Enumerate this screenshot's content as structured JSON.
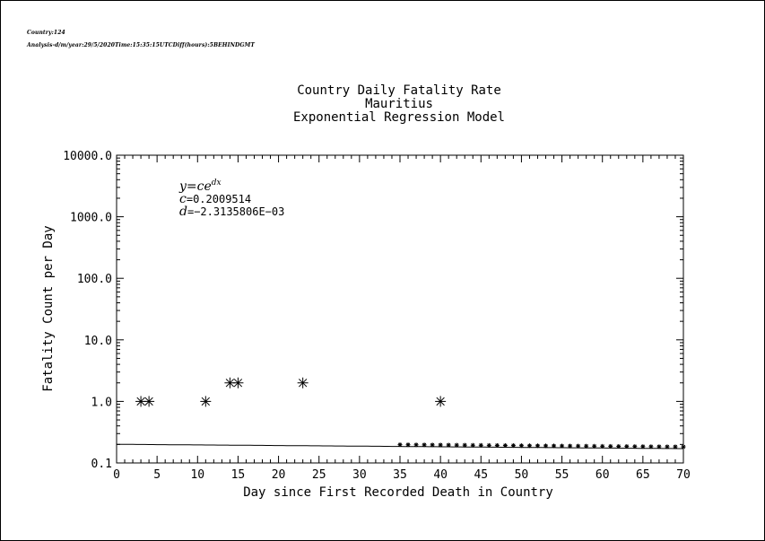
{
  "header": {
    "line1": "Country:124",
    "line2": "Analysis-d/m/year:29/5/2020Time:15:35:15UTCDiff(hours):5BEHINDGMT"
  },
  "chart_data": {
    "type": "scatter",
    "title": "Country Daily Fatality Rate",
    "subtitle": "Mauritius",
    "subtitle2": "Exponential Regression Model",
    "xlabel": "Day since First Recorded Death in Country",
    "ylabel": "Fatality Count per Day",
    "xlim": [
      0,
      70
    ],
    "ylim": [
      0.1,
      10000.0
    ],
    "yscale": "log",
    "x_ticks": [
      "0",
      "5",
      "10",
      "15",
      "20",
      "25",
      "30",
      "35",
      "40",
      "45",
      "50",
      "55",
      "60",
      "65",
      "70"
    ],
    "y_ticks": [
      "0.1",
      "1.0",
      "10.0",
      "100.0",
      "1000.0",
      "10000.0"
    ],
    "points": [
      {
        "x": 3,
        "y": 1
      },
      {
        "x": 4,
        "y": 1
      },
      {
        "x": 11,
        "y": 1
      },
      {
        "x": 14,
        "y": 2
      },
      {
        "x": 15,
        "y": 2
      },
      {
        "x": 23,
        "y": 2
      },
      {
        "x": 40,
        "y": 1
      }
    ],
    "model": {
      "equation": "y=ce",
      "equation_exp": "dx",
      "c_label": "c",
      "c_value": "=0.2009514",
      "d_label": "d",
      "d_value": "=−2.3135806E−03",
      "c": 0.2009514,
      "d": -0.0023135806
    },
    "grid": false,
    "marker": "asterisk"
  }
}
